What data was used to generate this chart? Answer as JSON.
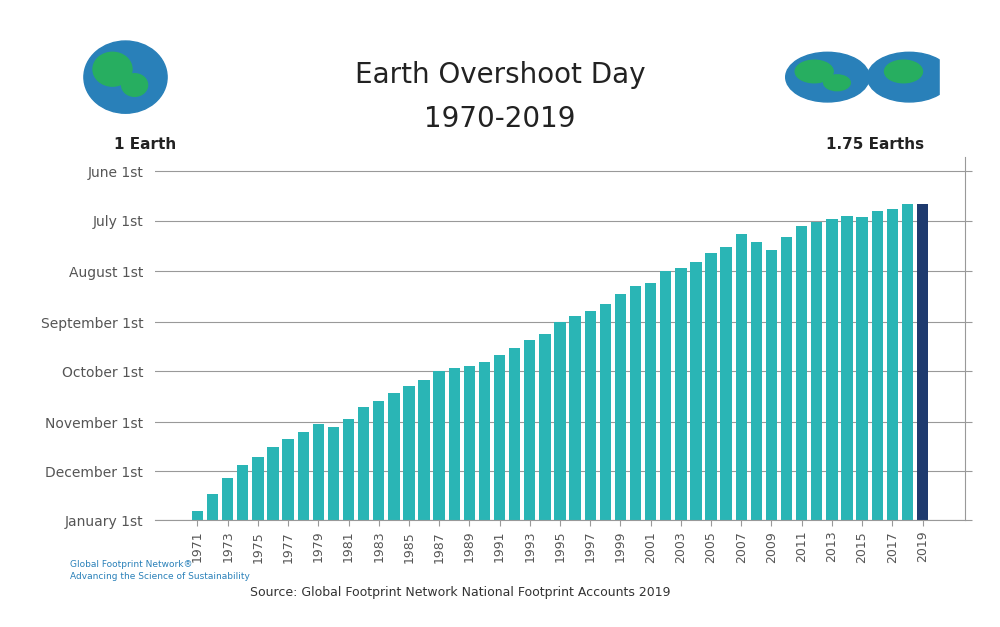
{
  "title_line1": "Earth Overshoot Day",
  "title_line2": "1970-2019",
  "source_text": "Source: Global Footprint Network National Footprint Accounts 2019",
  "background_color": "#ffffff",
  "bar_color_main": "#2ab5b5",
  "bar_color_last": "#1e3a6e",
  "years": [
    1971,
    1972,
    1973,
    1974,
    1975,
    1976,
    1977,
    1978,
    1979,
    1980,
    1981,
    1982,
    1983,
    1984,
    1985,
    1986,
    1987,
    1988,
    1989,
    1990,
    1991,
    1992,
    1993,
    1994,
    1995,
    1996,
    1997,
    1998,
    1999,
    2000,
    2001,
    2002,
    2003,
    2004,
    2005,
    2006,
    2007,
    2008,
    2009,
    2010,
    2011,
    2012,
    2013,
    2014,
    2015,
    2016,
    2017,
    2018,
    2019
  ],
  "bar_heights": [
    6,
    16,
    26,
    34,
    39,
    45,
    50,
    54,
    59,
    57,
    62,
    69,
    73,
    78,
    82,
    86,
    91,
    93,
    94,
    97,
    101,
    105,
    110,
    114,
    121,
    125,
    128,
    132,
    138,
    143,
    145,
    152,
    154,
    158,
    163,
    167,
    175,
    170,
    165,
    173,
    180,
    182,
    184,
    186,
    185,
    189,
    190,
    193,
    193
  ],
  "ytick_positions": [
    0,
    30,
    60,
    91,
    121,
    152,
    183,
    213
  ],
  "ytick_labels": [
    "January 1st",
    "December 1st",
    "November 1st",
    "October 1st",
    "September 1st",
    "August 1st",
    "July 1st",
    "June 1st"
  ],
  "ylim_max": 222,
  "grid_color": "#999999",
  "tick_label_color": "#555555",
  "title_color": "#222222",
  "title_fontsize": 20,
  "bar_width": 0.75
}
